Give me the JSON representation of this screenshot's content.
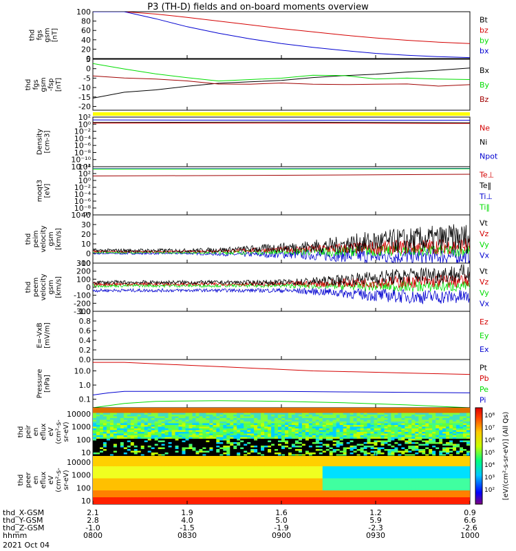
{
  "title": "P3 (TH-D) fields and on-board moments overview",
  "date": "2021 Oct 04",
  "colors": {
    "black": "#000000",
    "red": "#d40000",
    "green": "#00dd00",
    "blue": "#0000d0",
    "yellow": "#ffff00",
    "darkred": "#a00000"
  },
  "chart_data": [
    {
      "id": "fgs-mag",
      "type": "line",
      "ylabel": [
        "thd",
        "fgs",
        "gsm",
        "[nT]"
      ],
      "ylim": [
        0,
        100
      ],
      "yticks": [
        "0",
        "20",
        "40",
        "60",
        "80",
        "100"
      ],
      "legend": [
        "Bt",
        "bz",
        "by",
        "bx"
      ],
      "legend_colors": [
        "black",
        "red",
        "green",
        "blue"
      ],
      "series": [
        {
          "color": "red",
          "x": [
            0,
            10,
            20,
            30,
            40,
            50,
            60,
            70,
            80,
            90,
            100,
            110,
            120
          ],
          "y": [
            100,
            100,
            95,
            88,
            80,
            72,
            64,
            57,
            50,
            44,
            39,
            35,
            32
          ]
        },
        {
          "color": "blue",
          "x": [
            0,
            10,
            20,
            30,
            40,
            50,
            60,
            70,
            80,
            90,
            100,
            110,
            120
          ],
          "y": [
            100,
            100,
            85,
            68,
            54,
            42,
            32,
            24,
            17,
            11,
            7,
            4,
            2
          ]
        }
      ]
    },
    {
      "id": "fgs-vector",
      "type": "line",
      "ylabel": [
        "thd",
        "fgs",
        "gsm",
        "-fsp",
        "[nT]"
      ],
      "ylim": [
        -22,
        5
      ],
      "yticks": [
        "-20",
        "-15",
        "-10",
        "-5",
        "0",
        "5"
      ],
      "yticks_values": [
        -20,
        -15,
        -10,
        -5,
        0,
        5
      ],
      "legend": [
        "Bx",
        "By",
        "Bz"
      ],
      "legend_colors": [
        "black",
        "green",
        "darkred"
      ],
      "series": [
        {
          "color": "black",
          "x": [
            0,
            10,
            20,
            30,
            40,
            50,
            60,
            70,
            80,
            90,
            100,
            110,
            120
          ],
          "y": [
            -15,
            -13,
            -11,
            -9,
            -8,
            -7,
            -6,
            -5,
            -4,
            -3,
            -2,
            -1,
            0
          ]
        },
        {
          "color": "green",
          "x": [
            0,
            10,
            20,
            30,
            40,
            50,
            60,
            70,
            80,
            90,
            100,
            110,
            120
          ],
          "y": [
            3,
            0,
            -3,
            -5,
            -6,
            -6,
            -5,
            -4,
            -4,
            -5,
            -5,
            -6,
            -6
          ]
        },
        {
          "color": "darkred",
          "x": [
            0,
            10,
            20,
            30,
            40,
            50,
            60,
            70,
            80,
            90,
            100,
            110,
            120
          ],
          "y": [
            -4,
            -5,
            -6,
            -7,
            -8,
            -8,
            -8,
            -8,
            -8,
            -8,
            -8,
            -9,
            -9
          ]
        }
      ]
    },
    {
      "id": "density",
      "type": "line",
      "ylabel": [
        "Density",
        "[cm-3]"
      ],
      "ylog": true,
      "ylim_exp": [
        -12,
        2
      ],
      "yticks": [
        "10²",
        "10⁰",
        "10⁻²",
        "10⁻⁴",
        "10⁻⁶",
        "10⁻⁸",
        "10⁻¹⁰",
        "10⁻¹²"
      ],
      "legend": [
        "Ne",
        "Ni",
        "Npot"
      ],
      "legend_colors": [
        "red",
        "black",
        "blue"
      ],
      "series": [
        {
          "color": "blue",
          "x": [
            0,
            60,
            120
          ],
          "y_exp": [
            1.2,
            1.1,
            1.1
          ]
        },
        {
          "color": "black",
          "x": [
            0,
            60,
            120
          ],
          "y_exp": [
            0.5,
            0.6,
            0.4
          ]
        },
        {
          "color": "red",
          "x": [
            0,
            60,
            120
          ],
          "y_exp": [
            0.3,
            0.3,
            0.2
          ]
        }
      ]
    },
    {
      "id": "temperature",
      "type": "line",
      "ylabel": [
        "moqt3",
        "[eV]"
      ],
      "ylog": true,
      "ylim_exp": [
        -10,
        4
      ],
      "yticks": [
        "10⁴",
        "10²",
        "10⁰",
        "10⁻²",
        "10⁻⁴",
        "10⁻⁶",
        "10⁻⁸",
        "10⁻¹⁰"
      ],
      "legend": [
        "Te⊥",
        "Te‖",
        "Ti⊥",
        "Ti‖"
      ],
      "legend_colors": [
        "red",
        "black",
        "blue",
        "green"
      ],
      "series": [
        {
          "color": "blue",
          "x": [
            0,
            60,
            120
          ],
          "y_exp": [
            3.4,
            3.4,
            3.5
          ]
        },
        {
          "color": "green",
          "x": [
            0,
            60,
            120
          ],
          "y_exp": [
            3.3,
            3.3,
            3.4
          ]
        },
        {
          "color": "darkred",
          "x": [
            0,
            60,
            120
          ],
          "y_exp": [
            1.3,
            1.5,
            1.8
          ]
        }
      ]
    },
    {
      "id": "peim-velocity",
      "type": "line",
      "ylabel": [
        "thd",
        "peim",
        "velocity",
        "gsm",
        "[km/s]"
      ],
      "ylim": [
        -10,
        40
      ],
      "yticks": [
        "-10",
        "0",
        "10",
        "20",
        "30",
        "40"
      ],
      "yticks_values": [
        -10,
        0,
        10,
        20,
        30,
        40
      ],
      "legend": [
        "Vt",
        "Vz",
        "Vy",
        "Vx"
      ],
      "legend_colors": [
        "black",
        "red",
        "green",
        "blue"
      ],
      "series": [
        {
          "color": "blue",
          "base": [
            0,
            0,
            0,
            -1,
            -1,
            -2,
            -3,
            -3,
            -3
          ],
          "amp": [
            1,
            1,
            1,
            2,
            4,
            6,
            8,
            8,
            8
          ]
        },
        {
          "color": "green",
          "base": [
            1,
            1,
            1,
            1,
            2,
            2,
            3,
            3,
            3
          ],
          "amp": [
            1,
            1,
            1,
            2,
            3,
            5,
            6,
            6,
            6
          ]
        },
        {
          "color": "red",
          "base": [
            2,
            2,
            2,
            3,
            4,
            5,
            6,
            7,
            8
          ],
          "amp": [
            1,
            1,
            1,
            2,
            3,
            5,
            7,
            8,
            9
          ]
        },
        {
          "color": "black",
          "base": [
            3,
            3,
            3,
            4,
            6,
            8,
            12,
            14,
            16
          ],
          "amp": [
            2,
            2,
            2,
            3,
            5,
            8,
            12,
            14,
            16
          ]
        }
      ]
    },
    {
      "id": "peem-velocity",
      "type": "line",
      "ylabel": [
        "thd",
        "peem",
        "velocity",
        "gsm",
        "[km/s]"
      ],
      "ylim": [
        -300,
        300
      ],
      "yticks": [
        "-300",
        "-200",
        "-100",
        "0",
        "100",
        "200",
        "300"
      ],
      "yticks_values": [
        -300,
        -200,
        -100,
        0,
        100,
        200,
        300
      ],
      "legend": [
        "Vt",
        "Vz",
        "Vy",
        "Vx"
      ],
      "legend_colors": [
        "black",
        "red",
        "green",
        "blue"
      ],
      "series": [
        {
          "color": "blue",
          "base": [
            -40,
            -40,
            -40,
            -40,
            -40,
            -60,
            -100,
            -120,
            -120
          ],
          "amp": [
            20,
            20,
            20,
            20,
            30,
            50,
            80,
            90,
            90
          ]
        },
        {
          "color": "green",
          "base": [
            20,
            20,
            20,
            20,
            20,
            15,
            10,
            10,
            10
          ],
          "amp": [
            20,
            20,
            20,
            20,
            25,
            40,
            60,
            70,
            70
          ]
        },
        {
          "color": "red",
          "base": [
            40,
            40,
            40,
            40,
            40,
            50,
            60,
            70,
            80
          ],
          "amp": [
            20,
            20,
            20,
            20,
            30,
            50,
            70,
            80,
            90
          ]
        },
        {
          "color": "black",
          "base": [
            60,
            60,
            60,
            60,
            60,
            80,
            120,
            150,
            170
          ],
          "amp": [
            25,
            25,
            25,
            25,
            35,
            60,
            90,
            110,
            120
          ]
        }
      ]
    },
    {
      "id": "efield",
      "type": "line",
      "ylabel": [
        "E=-VxB",
        "[mV/m]"
      ],
      "ylim": [
        0,
        1
      ],
      "yticks": [
        "0.0",
        "0.2",
        "0.4",
        "0.6",
        "0.8",
        "1.0"
      ],
      "yticks_values": [
        0,
        0.2,
        0.4,
        0.6,
        0.8,
        1.0
      ],
      "legend": [
        "Ez",
        "Ey",
        "Ex"
      ],
      "legend_colors": [
        "red",
        "green",
        "blue"
      ]
    },
    {
      "id": "pressure",
      "type": "line",
      "ylabel": [
        "Pressure",
        "[nPa]"
      ],
      "ylog": true,
      "ylim_exp": [
        -1.6,
        1.8
      ],
      "yticks": [
        "10.0",
        "1.0",
        "0.1"
      ],
      "yticks_exp": [
        1,
        0,
        -1
      ],
      "legend": [
        "Pt",
        "Pb",
        "Pe",
        "Pi"
      ],
      "legend_colors": [
        "black",
        "red",
        "green",
        "blue"
      ],
      "series": [
        {
          "color": "red",
          "x": [
            0,
            10,
            20,
            30,
            40,
            50,
            60,
            70,
            80,
            90,
            100,
            110,
            120
          ],
          "y_exp": [
            1.6,
            1.6,
            1.5,
            1.4,
            1.3,
            1.2,
            1.1,
            1.0,
            0.95,
            0.9,
            0.85,
            0.8,
            0.75
          ]
        },
        {
          "color": "blue",
          "x": [
            0,
            5,
            10,
            60,
            120
          ],
          "y_exp": [
            -0.7,
            -0.55,
            -0.45,
            -0.45,
            -0.55
          ]
        },
        {
          "color": "green",
          "x": [
            0,
            10,
            20,
            40,
            60,
            80,
            100,
            120
          ],
          "y_exp": [
            -1.6,
            -1.3,
            -1.15,
            -1.1,
            -1.15,
            -1.25,
            -1.4,
            -1.6
          ]
        }
      ]
    },
    {
      "id": "peir-spec",
      "type": "heatmap",
      "ylabel": [
        "thd",
        "peir",
        "en",
        "eflux",
        "eV",
        "(cm²-s-",
        "sr-eV)"
      ],
      "yticks": [
        "10000",
        "1000",
        "100",
        "10"
      ]
    },
    {
      "id": "peer-spec",
      "type": "heatmap",
      "ylabel": [
        "thd",
        "peer",
        "en",
        "eflux",
        "eV",
        "(cm²-s-",
        "sr-eV)"
      ],
      "yticks": [
        "10000",
        "1000",
        "100",
        "10"
      ]
    }
  ],
  "colorbar": {
    "label": "[eV/(cm²-s-sr-eV)] (All Qs)",
    "ticks": [
      "10⁸",
      "10⁷",
      "10⁶",
      "10⁵",
      "10⁴",
      "10³",
      "10²"
    ]
  },
  "xaxis": {
    "rows": [
      {
        "label": "thd_X-GSM",
        "values": [
          "2.1",
          "1.9",
          "1.6",
          "1.2",
          "0.9"
        ]
      },
      {
        "label": "thd_Y-GSM",
        "values": [
          "2.8",
          "4.0",
          "5.0",
          "5.9",
          "6.6"
        ]
      },
      {
        "label": "thd_Z-GSM",
        "values": [
          "-1.0",
          "-1.5",
          "-1.9",
          "-2.3",
          "-2.6"
        ]
      },
      {
        "label": "hhmm",
        "values": [
          "0800",
          "0830",
          "0900",
          "0930",
          "1000"
        ]
      }
    ]
  }
}
